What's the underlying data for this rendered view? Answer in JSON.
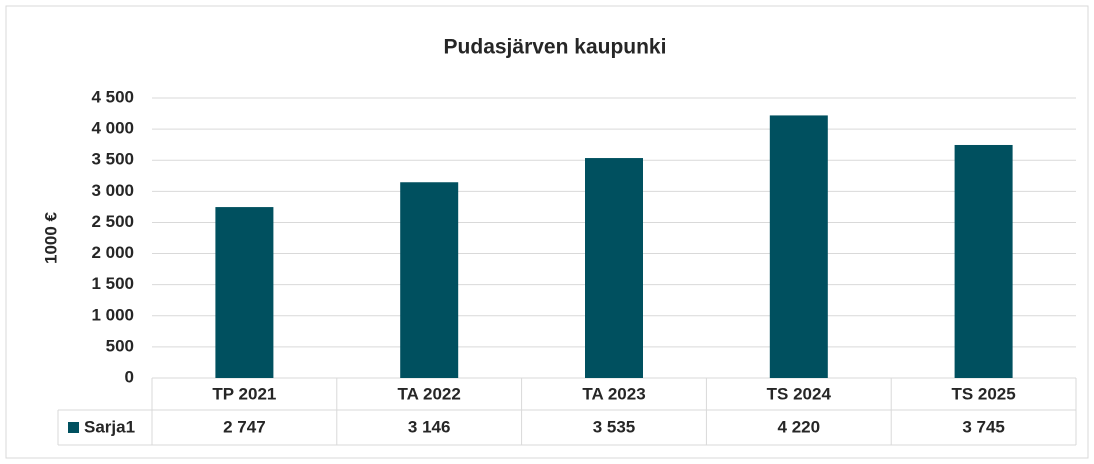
{
  "chart_data": {
    "type": "bar",
    "title": "Pudasjärven kaupunki",
    "y_label": "1000 €",
    "categories": [
      "TP 2021",
      "TA 2022",
      "TA 2023",
      "TS 2024",
      "TS 2025"
    ],
    "series": [
      {
        "name": "Sarja1",
        "color": "#00505f",
        "values": [
          2747,
          3146,
          3535,
          4220,
          3745
        ],
        "value_labels": [
          "2 747",
          "3 146",
          "3 535",
          "4 220",
          "3 745"
        ]
      }
    ],
    "ylim": [
      0,
      4500
    ],
    "yticks": [
      0,
      500,
      {
        "value": 1000,
        "label": "1 000"
      },
      {
        "value": 1500,
        "label": "1 500"
      },
      {
        "value": 2000,
        "label": "2 000"
      },
      {
        "value": 2500,
        "label": "2 500"
      },
      {
        "value": 3000,
        "label": "3 000"
      },
      {
        "value": 3500,
        "label": "3 500"
      },
      {
        "value": 4000,
        "label": "4 000"
      },
      {
        "value": 4500,
        "label": "4 500"
      }
    ],
    "grid": true,
    "data_table": true
  }
}
